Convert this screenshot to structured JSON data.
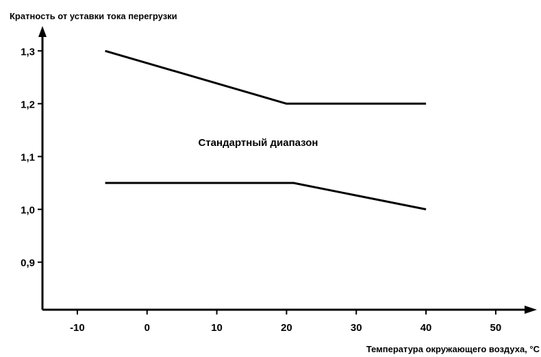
{
  "chart_data": {
    "type": "line",
    "ylabel": "Кратность от уставки тока перегрузки",
    "xlabel": "Температура окружающего воздуха, °С",
    "annotation": "Стандартный диапазон",
    "xticks": [
      {
        "value": -10,
        "label": "-10"
      },
      {
        "value": 0,
        "label": "0"
      },
      {
        "value": 10,
        "label": "10"
      },
      {
        "value": 20,
        "label": "20"
      },
      {
        "value": 30,
        "label": "30"
      },
      {
        "value": 40,
        "label": "40"
      },
      {
        "value": 50,
        "label": "50"
      }
    ],
    "yticks": [
      {
        "value": 0.9,
        "label": "0,9"
      },
      {
        "value": 1.0,
        "label": "1,0"
      },
      {
        "value": 1.1,
        "label": "1,1"
      },
      {
        "value": 1.2,
        "label": "1,2"
      },
      {
        "value": 1.3,
        "label": "1,3"
      }
    ],
    "xlim": [
      -15,
      56
    ],
    "ylim": [
      0.81,
      1.36
    ],
    "grid": false,
    "series": [
      {
        "x": [
          -6,
          20,
          40
        ],
        "y": [
          1.3,
          1.2,
          1.2
        ]
      },
      {
        "x": [
          -6,
          21,
          40
        ],
        "y": [
          1.05,
          1.05,
          1.0
        ]
      }
    ],
    "line_color": "#000000"
  }
}
